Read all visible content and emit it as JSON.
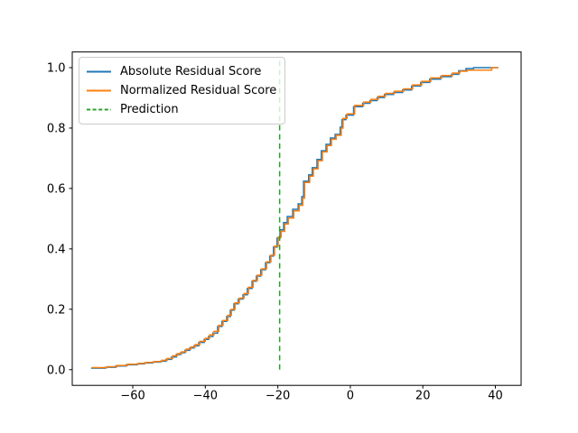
{
  "window": {
    "background": "#ffffff"
  },
  "chart_data": {
    "type": "line",
    "subtype": "ecdf-step",
    "title": "",
    "xlabel": "",
    "ylabel": "",
    "grid": false,
    "xlim": [
      -76.7,
      47.1
    ],
    "ylim": [
      -0.052,
      1.052
    ],
    "x_ticks": {
      "values": [
        -60,
        -40,
        -20,
        0,
        20,
        40
      ],
      "labels": [
        "−60",
        "−40",
        "−20",
        "0",
        "20",
        "40"
      ]
    },
    "y_ticks": {
      "values": [
        0.0,
        0.2,
        0.4,
        0.6,
        0.8,
        1.0
      ],
      "labels": [
        "0.0",
        "0.2",
        "0.4",
        "0.6",
        "0.8",
        "1.0"
      ]
    },
    "legend_position": "upper-left",
    "series": [
      {
        "name": "Absolute Residual Score",
        "color": "#1f77b4",
        "line_style": "solid",
        "line_width": 1.5,
        "points": [
          [
            -71.5,
            0.005
          ],
          [
            -67.5,
            0.008
          ],
          [
            -64.7,
            0.012
          ],
          [
            -61.8,
            0.016
          ],
          [
            -58.8,
            0.019
          ],
          [
            -56.8,
            0.022
          ],
          [
            -54.5,
            0.025
          ],
          [
            -52.3,
            0.028
          ],
          [
            -50.8,
            0.034
          ],
          [
            -49.3,
            0.042
          ],
          [
            -48.0,
            0.05
          ],
          [
            -46.8,
            0.056
          ],
          [
            -45.6,
            0.064
          ],
          [
            -44.3,
            0.072
          ],
          [
            -43.1,
            0.079
          ],
          [
            -41.8,
            0.09
          ],
          [
            -40.3,
            0.1
          ],
          [
            -39.1,
            0.11
          ],
          [
            -37.9,
            0.121
          ],
          [
            -36.6,
            0.143
          ],
          [
            -35.4,
            0.16
          ],
          [
            -34.1,
            0.176
          ],
          [
            -33.1,
            0.197
          ],
          [
            -32.1,
            0.218
          ],
          [
            -30.9,
            0.234
          ],
          [
            -29.6,
            0.248
          ],
          [
            -28.4,
            0.269
          ],
          [
            -27.1,
            0.293
          ],
          [
            -25.9,
            0.31
          ],
          [
            -24.7,
            0.331
          ],
          [
            -23.4,
            0.354
          ],
          [
            -22.2,
            0.376
          ],
          [
            -21.2,
            0.406
          ],
          [
            -20.2,
            0.436
          ],
          [
            -19.4,
            0.463
          ],
          [
            -18.4,
            0.487
          ],
          [
            -17.4,
            0.507
          ],
          [
            -15.9,
            0.531
          ],
          [
            -14.4,
            0.549
          ],
          [
            -13.4,
            0.573
          ],
          [
            -12.9,
            0.624
          ],
          [
            -11.5,
            0.645
          ],
          [
            -10.5,
            0.669
          ],
          [
            -9.2,
            0.696
          ],
          [
            -8.0,
            0.725
          ],
          [
            -6.7,
            0.746
          ],
          [
            -5.5,
            0.767
          ],
          [
            -4.2,
            0.779
          ],
          [
            -2.8,
            0.803
          ],
          [
            -2.3,
            0.828
          ],
          [
            -1.2,
            0.843
          ],
          [
            0.9,
            0.871
          ],
          [
            3.4,
            0.882
          ],
          [
            5.4,
            0.891
          ],
          [
            7.4,
            0.901
          ],
          [
            9.4,
            0.911
          ],
          [
            11.9,
            0.918
          ],
          [
            14.4,
            0.926
          ],
          [
            16.9,
            0.939
          ],
          [
            19.4,
            0.951
          ],
          [
            21.9,
            0.962
          ],
          [
            24.9,
            0.97
          ],
          [
            27.9,
            0.978
          ],
          [
            29.9,
            0.99
          ],
          [
            31.9,
            0.997
          ],
          [
            34.0,
            1.0
          ],
          [
            40.8,
            1.0
          ]
        ]
      },
      {
        "name": "Normalized Residual Score",
        "color": "#ff7f0e",
        "line_style": "solid",
        "line_width": 1.5,
        "points": [
          [
            -71.3,
            0.007
          ],
          [
            -67.0,
            0.01
          ],
          [
            -64.3,
            0.014
          ],
          [
            -61.4,
            0.018
          ],
          [
            -58.4,
            0.021
          ],
          [
            -56.4,
            0.024
          ],
          [
            -54.1,
            0.027
          ],
          [
            -52.0,
            0.031
          ],
          [
            -50.5,
            0.037
          ],
          [
            -49.0,
            0.046
          ],
          [
            -47.7,
            0.053
          ],
          [
            -46.5,
            0.059
          ],
          [
            -45.3,
            0.068
          ],
          [
            -44.0,
            0.075
          ],
          [
            -42.8,
            0.083
          ],
          [
            -41.5,
            0.094
          ],
          [
            -40.0,
            0.104
          ],
          [
            -38.8,
            0.115
          ],
          [
            -37.6,
            0.127
          ],
          [
            -36.3,
            0.147
          ],
          [
            -35.1,
            0.163
          ],
          [
            -33.8,
            0.18
          ],
          [
            -32.8,
            0.2
          ],
          [
            -31.8,
            0.221
          ],
          [
            -30.6,
            0.237
          ],
          [
            -29.3,
            0.252
          ],
          [
            -28.1,
            0.273
          ],
          [
            -26.8,
            0.296
          ],
          [
            -25.6,
            0.313
          ],
          [
            -24.4,
            0.334
          ],
          [
            -23.1,
            0.357
          ],
          [
            -21.9,
            0.379
          ],
          [
            -20.9,
            0.409
          ],
          [
            -19.9,
            0.439
          ],
          [
            -19.1,
            0.458
          ],
          [
            -18.1,
            0.482
          ],
          [
            -17.1,
            0.502
          ],
          [
            -15.6,
            0.526
          ],
          [
            -14.1,
            0.544
          ],
          [
            -13.1,
            0.568
          ],
          [
            -12.6,
            0.62
          ],
          [
            -11.2,
            0.641
          ],
          [
            -10.2,
            0.665
          ],
          [
            -8.9,
            0.692
          ],
          [
            -7.7,
            0.721
          ],
          [
            -6.4,
            0.742
          ],
          [
            -5.2,
            0.763
          ],
          [
            -3.9,
            0.776
          ],
          [
            -2.5,
            0.8
          ],
          [
            -2.0,
            0.832
          ],
          [
            -0.9,
            0.847
          ],
          [
            1.2,
            0.875
          ],
          [
            3.7,
            0.886
          ],
          [
            5.7,
            0.895
          ],
          [
            7.7,
            0.905
          ],
          [
            9.7,
            0.915
          ],
          [
            12.2,
            0.922
          ],
          [
            14.7,
            0.93
          ],
          [
            17.2,
            0.943
          ],
          [
            19.7,
            0.955
          ],
          [
            22.2,
            0.966
          ],
          [
            25.2,
            0.974
          ],
          [
            28.2,
            0.982
          ],
          [
            30.2,
            0.988
          ],
          [
            32.2,
            0.992
          ],
          [
            39.0,
            1.0
          ],
          [
            40.8,
            1.0
          ]
        ]
      }
    ],
    "vlines": [
      {
        "name": "Prediction",
        "x": -19.5,
        "color": "#2ca02c",
        "line_style": "dashed",
        "line_width": 1.5,
        "y_span": [
          0.0,
          1.035
        ]
      }
    ]
  },
  "legend": {
    "items": [
      {
        "label": "Absolute Residual Score",
        "color": "#1f77b4",
        "dash": "none"
      },
      {
        "label": "Normalized Residual Score",
        "color": "#ff7f0e",
        "dash": "none"
      },
      {
        "label": "Prediction",
        "color": "#2ca02c",
        "dash": "4 2.6"
      }
    ]
  }
}
